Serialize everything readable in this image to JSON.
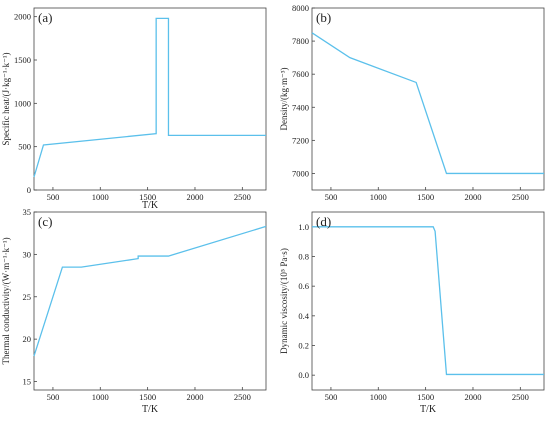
{
  "chart_data": [
    {
      "panel": "(a)",
      "type": "line",
      "xlabel": "T/K",
      "ylabel": "Specific heat/(J·kg⁻¹·k⁻¹)",
      "xlim": [
        300,
        2750
      ],
      "ylim": [
        0,
        2100
      ],
      "xticks": [
        500,
        1000,
        1500,
        2000,
        2500
      ],
      "yticks": [
        0,
        500,
        1000,
        1500,
        2000
      ],
      "color": "#5bc0eb",
      "series": [
        {
          "x": [
            300,
            400,
            1590,
            1590,
            1720,
            1720,
            2750
          ],
          "y": [
            150,
            520,
            650,
            1980,
            1980,
            630,
            630
          ]
        }
      ]
    },
    {
      "panel": "(b)",
      "type": "line",
      "xlabel": "",
      "ylabel": "Density/(kg·m⁻³)",
      "xlim": [
        300,
        2750
      ],
      "ylim": [
        6900,
        8000
      ],
      "xticks": [
        500,
        1000,
        1500,
        2000,
        2500
      ],
      "yticks": [
        7000,
        7200,
        7400,
        7600,
        7800,
        8000
      ],
      "color": "#5bc0eb",
      "series": [
        {
          "x": [
            300,
            700,
            1400,
            1720,
            2750
          ],
          "y": [
            7850,
            7700,
            7550,
            7000,
            7000
          ]
        }
      ]
    },
    {
      "panel": "(c)",
      "type": "line",
      "xlabel": "T/K",
      "ylabel": "Thermal conductivity/(W·m⁻¹·k⁻¹)",
      "xlim": [
        300,
        2750
      ],
      "ylim": [
        14,
        35
      ],
      "xticks": [
        500,
        1000,
        1500,
        2000,
        2500
      ],
      "yticks": [
        15,
        20,
        25,
        30,
        35
      ],
      "color": "#5bc0eb",
      "series": [
        {
          "x": [
            300,
            600,
            800,
            1400,
            1400,
            1720,
            2750
          ],
          "y": [
            18,
            28.5,
            28.5,
            29.5,
            29.8,
            29.8,
            33.3
          ]
        }
      ]
    },
    {
      "panel": "(d)",
      "type": "line",
      "xlabel": "T/K",
      "ylabel": "Dynamic viscosity/(10⁵ Pa·s)",
      "xlim": [
        300,
        2750
      ],
      "ylim": [
        -0.1,
        1.1
      ],
      "xticks": [
        500,
        1000,
        1500,
        2000,
        2500
      ],
      "yticks": [
        0.0,
        0.2,
        0.4,
        0.6,
        0.8,
        1.0
      ],
      "tickDecimals": 1,
      "color": "#5bc0eb",
      "series": [
        {
          "x": [
            300,
            1580,
            1600,
            1720,
            2750
          ],
          "y": [
            1.0,
            1.0,
            0.97,
            0.005,
            0.005
          ]
        }
      ]
    }
  ]
}
